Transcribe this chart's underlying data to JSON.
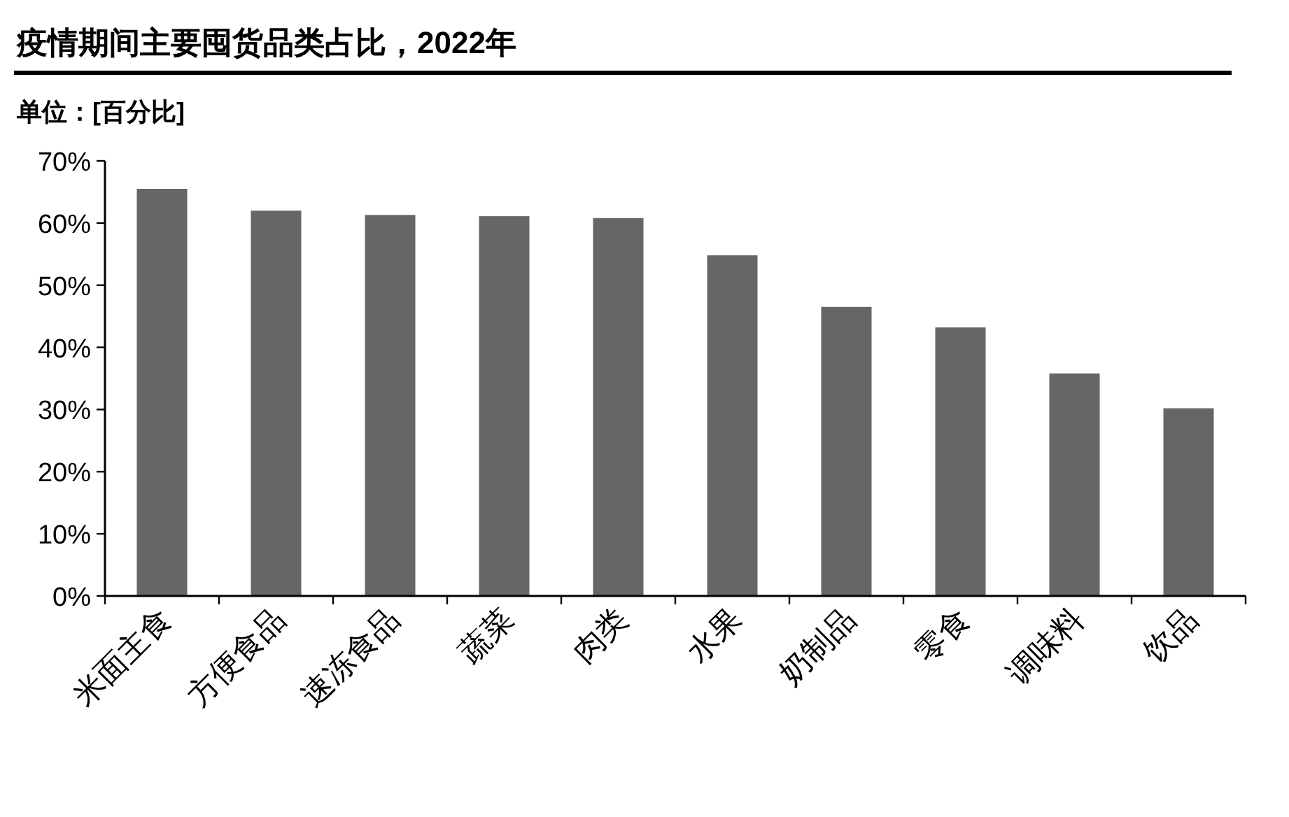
{
  "chart_data": {
    "type": "bar",
    "title": "疫情期间主要囤货品类占比，2022年",
    "ylabel": "单位：[百分比]",
    "categories": [
      "米面主食",
      "方便食品",
      "速冻食品",
      "蔬菜",
      "肉类",
      "水果",
      "奶制品",
      "零食",
      "调味料",
      "饮品"
    ],
    "values": [
      65.5,
      62,
      61.3,
      61.1,
      60.8,
      54.8,
      46.5,
      43.2,
      35.8,
      30.2
    ],
    "color": "#666666",
    "ylim": [
      0,
      70
    ],
    "yticks": [
      {
        "value": 0,
        "label": "0%"
      },
      {
        "value": 10,
        "label": "10%"
      },
      {
        "value": 20,
        "label": "20%"
      },
      {
        "value": 30,
        "label": "30%"
      },
      {
        "value": 40,
        "label": "40%"
      },
      {
        "value": 50,
        "label": "50%"
      },
      {
        "value": 60,
        "label": "60%"
      },
      {
        "value": 70,
        "label": "70%"
      }
    ]
  }
}
